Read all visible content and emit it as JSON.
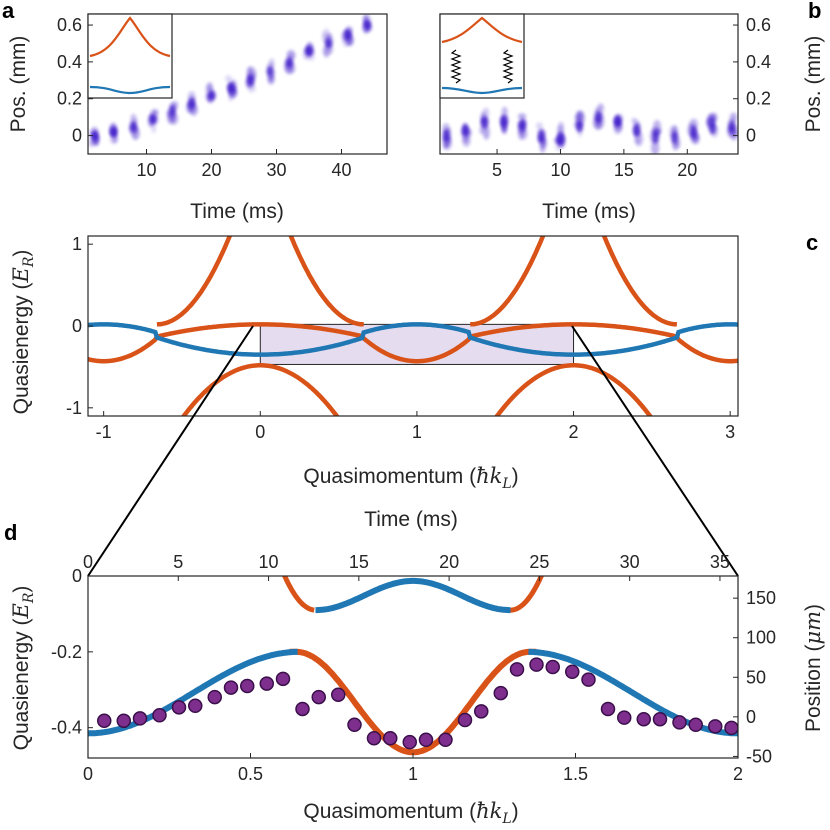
{
  "colors": {
    "blue": "#1f77b4",
    "orange": "#d95319",
    "purple_fill": "#7e2f8e",
    "purple_edge": "#3a0f4a",
    "shade": "#e6dcef",
    "axis": "#262626",
    "dots": "#3a18c8"
  },
  "chart_data": [
    {
      "panel": "a",
      "type": "scatter",
      "title": "",
      "xlabel": "Time (ms)",
      "ylabel": "Pos. (mm)",
      "xlim": [
        1,
        47
      ],
      "ylim": [
        -0.1,
        0.66
      ],
      "xticks": [
        "10",
        "20",
        "30",
        "40"
      ],
      "yticks": [
        "0",
        "0.2",
        "0.4",
        "0.6"
      ],
      "description_series": "absorption images of atom cloud drifting with time",
      "centers": {
        "t": [
          2,
          5,
          8,
          11,
          14,
          17,
          20,
          23,
          26,
          29,
          32,
          35,
          38,
          41,
          44
        ],
        "pos": [
          0.0,
          0.02,
          0.05,
          0.09,
          0.14,
          0.18,
          0.22,
          0.26,
          0.3,
          0.35,
          0.4,
          0.46,
          0.5,
          0.55,
          0.6
        ]
      },
      "inset": "band sketch: orange upper band, blue lower band"
    },
    {
      "panel": "b",
      "type": "scatter",
      "xlabel": "Time (ms)",
      "ylabel": "Pos. (mm)",
      "xlim": [
        0.5,
        24
      ],
      "ylim": [
        -0.1,
        0.66
      ],
      "xticks": [
        "5",
        "10",
        "15",
        "20"
      ],
      "yticks": [
        "0",
        "0.2",
        "0.4",
        "0.6"
      ],
      "centers": {
        "t": [
          1,
          2.5,
          4,
          5.5,
          7,
          8.5,
          10,
          11.5,
          13,
          14.5,
          16,
          17.5,
          19,
          20.5,
          22,
          23.5
        ],
        "pos": [
          0.0,
          0.03,
          0.07,
          0.08,
          0.06,
          0.0,
          -0.02,
          0.05,
          0.1,
          0.08,
          0.03,
          -0.01,
          -0.01,
          0.02,
          0.04,
          0.05
        ]
      },
      "inset": "band sketch with coupling springs between bands"
    },
    {
      "panel": "c",
      "type": "line",
      "xlabel": "Quasimomentum",
      "xlabel_unit": "ħk",
      "xlabel_sub": "L",
      "ylabel": "Quasienergy",
      "ylabel_unit": "E",
      "ylabel_sub": "R",
      "xlim": [
        -1.1,
        3.05
      ],
      "ylim": [
        -1.1,
        1.1
      ],
      "xticks": [
        "-1",
        "0",
        "1",
        "2",
        "3"
      ],
      "yticks": [
        "-1",
        "0",
        "1"
      ],
      "shaded_region": {
        "x": [
          0,
          2
        ],
        "y": [
          -0.47,
          0.02
        ]
      },
      "series": [
        {
          "name": "blue band",
          "color": "blue"
        },
        {
          "name": "orange band",
          "color": "orange"
        }
      ]
    },
    {
      "panel": "d",
      "type": "line+scatter",
      "top_xlabel": "Time (ms)",
      "top_xticks": [
        "0",
        "5",
        "10",
        "15",
        "20",
        "25",
        "30",
        "35"
      ],
      "xlabel": "Quasimomentum",
      "xlabel_unit": "ħk",
      "xlabel_sub": "L",
      "ylabel": "Quasienergy",
      "ylabel_unit": "E",
      "ylabel_sub": "R",
      "right_ylabel": "Position",
      "right_ylabel_unit": "μm",
      "xlim": [
        0,
        2
      ],
      "ylim": [
        -0.48,
        0.0
      ],
      "xticks": [
        "0",
        "0.5",
        "1",
        "1.5",
        "2"
      ],
      "yticks": [
        "-0.4",
        "-0.2",
        "0"
      ],
      "right_ylim": [
        -52,
        178
      ],
      "right_yticks": [
        "-50",
        "0",
        "50",
        "100",
        "150"
      ],
      "points": {
        "q": [
          0.05,
          0.11,
          0.16,
          0.22,
          0.28,
          0.33,
          0.39,
          0.44,
          0.49,
          0.55,
          0.6,
          0.66,
          0.71,
          0.77,
          0.82,
          0.88,
          0.93,
          0.99,
          1.04,
          1.1,
          1.16,
          1.21,
          1.27,
          1.32,
          1.38,
          1.43,
          1.49,
          1.54,
          1.6,
          1.65,
          1.71,
          1.76,
          1.82,
          1.87,
          1.93,
          1.98
        ],
        "pos_um": [
          -5,
          -5,
          -2,
          2,
          12,
          14,
          25,
          37,
          39,
          42,
          48,
          10,
          25,
          28,
          -10,
          -27,
          -27,
          -32,
          -29,
          -29,
          -4,
          7,
          30,
          60,
          66,
          63,
          57,
          47,
          10,
          -1,
          -3,
          -3,
          -7,
          -10,
          -12,
          -14
        ]
      },
      "series": [
        {
          "name": "blue band",
          "color": "blue"
        },
        {
          "name": "orange band",
          "color": "orange"
        }
      ]
    }
  ],
  "panel_labels": {
    "a": "a",
    "b": "b",
    "c": "c",
    "d": "d"
  }
}
